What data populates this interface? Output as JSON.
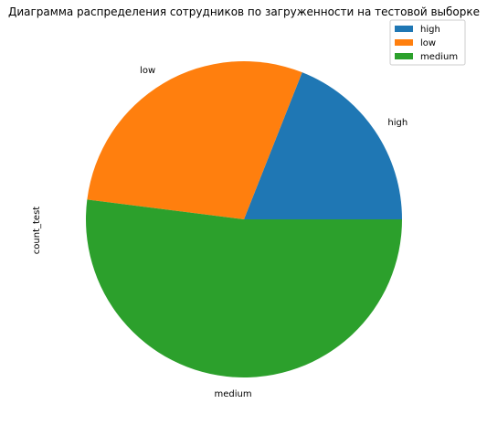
{
  "chart_data": {
    "type": "pie",
    "title": "Диаграмма распределения сотрудников по загруженности на тестовой выборке",
    "ylabel": "count_test",
    "categories": [
      "high",
      "low",
      "medium"
    ],
    "values": [
      19,
      29,
      52
    ],
    "colors": [
      "#1f77b4",
      "#ff7f0e",
      "#2ca02c"
    ],
    "start_angle_deg": 0,
    "direction": "counterclockwise",
    "legend": {
      "position": "top-right",
      "entries": [
        "high",
        "low",
        "medium"
      ]
    }
  }
}
